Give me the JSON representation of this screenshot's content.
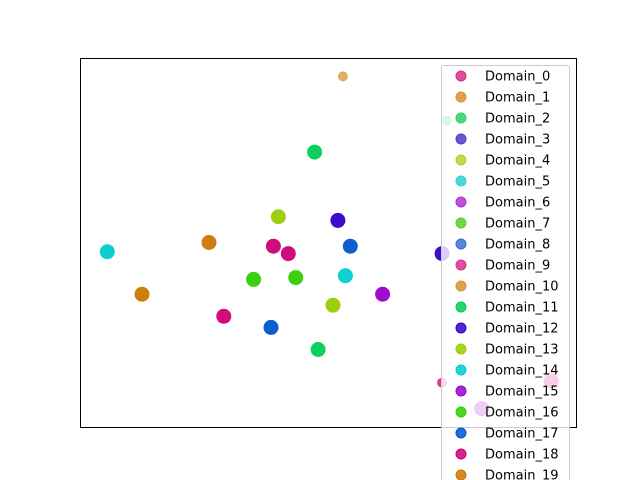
{
  "chart_data": {
    "type": "scatter",
    "title": "",
    "xlabel": "",
    "ylabel": "",
    "xlim": [
      0,
      100
    ],
    "ylim": [
      0,
      100
    ],
    "ticks_visible": false,
    "grid": false,
    "legend": {
      "placement": "top-right",
      "visible_entries": 20
    },
    "series": [
      {
        "name": "Domain_0",
        "color": "#d6318c",
        "points": []
      },
      {
        "name": "Domain_1",
        "color": "#d6932e",
        "points": [
          [
            53.0,
            95.0
          ]
        ]
      },
      {
        "name": "Domain_2",
        "color": "#2fcf6a",
        "points": [
          [
            74.0,
            83.0
          ]
        ]
      },
      {
        "name": "Domain_3",
        "color": "#4f38cf",
        "points": []
      },
      {
        "name": "Domain_4",
        "color": "#b5d12e",
        "points": []
      },
      {
        "name": "Domain_5",
        "color": "#2fd1d1",
        "points": []
      },
      {
        "name": "Domain_6",
        "color": "#b231d1",
        "points": []
      },
      {
        "name": "Domain_7",
        "color": "#57cf2e",
        "points": []
      },
      {
        "name": "Domain_8",
        "color": "#3a72d1",
        "points": []
      },
      {
        "name": "Domain_9",
        "color": "#d6318c",
        "points": [
          [
            73.0,
            12.0
          ]
        ]
      },
      {
        "name": "Domain_10",
        "color": "#d6932e",
        "points": []
      },
      {
        "name": "Domain_11",
        "color": "#00cc55",
        "points": [
          [
            47.3,
            74.5
          ],
          [
            48.0,
            21.0
          ]
        ]
      },
      {
        "name": "Domain_12",
        "color": "#3300cc",
        "points": [
          [
            52.0,
            56.0
          ],
          [
            73.0,
            47.0
          ]
        ]
      },
      {
        "name": "Domain_13",
        "color": "#99cc00",
        "points": [
          [
            40.0,
            57.0
          ],
          [
            51.0,
            33.0
          ]
        ]
      },
      {
        "name": "Domain_14",
        "color": "#00cccc",
        "points": [
          [
            5.5,
            47.5
          ],
          [
            53.5,
            41.0
          ]
        ]
      },
      {
        "name": "Domain_15",
        "color": "#9900cc",
        "points": [
          [
            61.0,
            36.0
          ],
          [
            81.0,
            5.0
          ]
        ]
      },
      {
        "name": "Domain_16",
        "color": "#33cc00",
        "points": [
          [
            35.0,
            40.0
          ],
          [
            43.5,
            40.5
          ]
        ]
      },
      {
        "name": "Domain_17",
        "color": "#0055cc",
        "points": [
          [
            54.5,
            49.0
          ],
          [
            38.5,
            27.0
          ]
        ]
      },
      {
        "name": "Domain_18",
        "color": "#cc0077",
        "points": [
          [
            39.0,
            49.0
          ],
          [
            42.0,
            47.0
          ],
          [
            29.0,
            30.0
          ],
          [
            95.0,
            12.5
          ]
        ]
      },
      {
        "name": "Domain_19",
        "color": "#cc7700",
        "points": [
          [
            26.0,
            50.0
          ],
          [
            12.5,
            36.0
          ]
        ]
      }
    ]
  }
}
